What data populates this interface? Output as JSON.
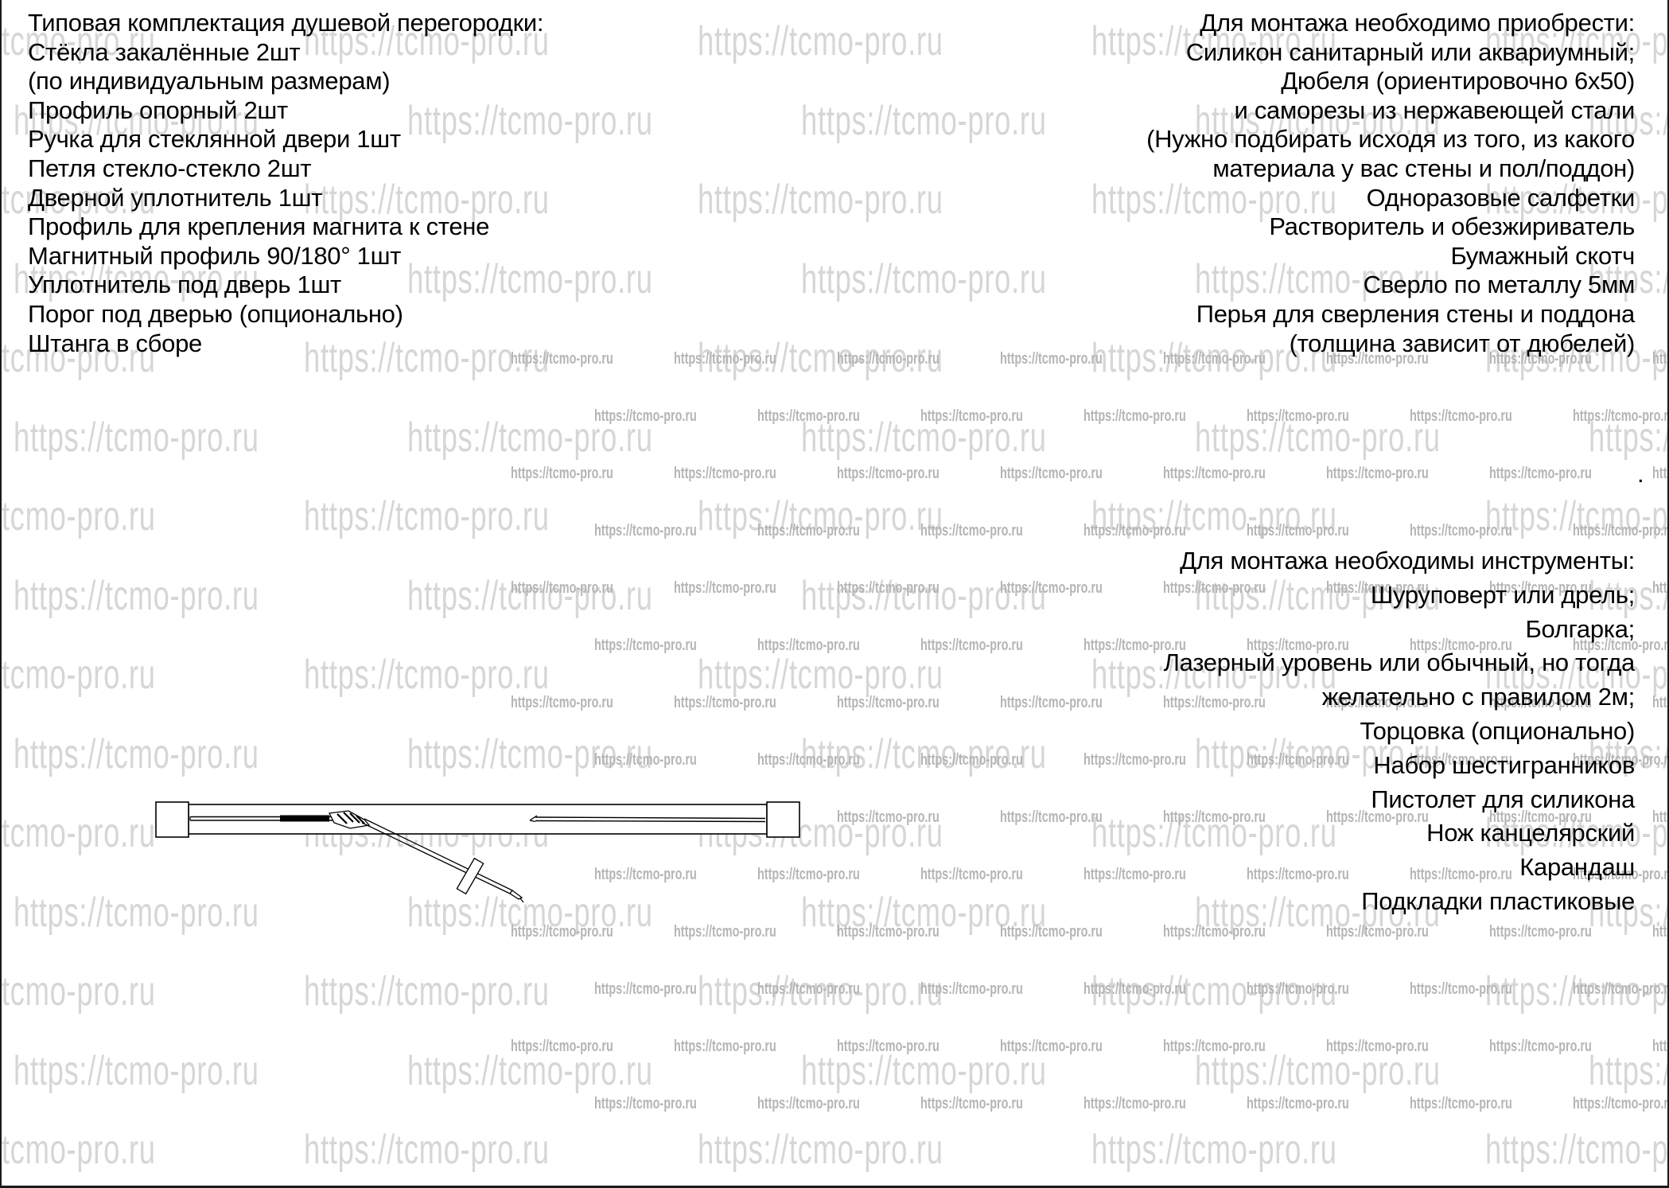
{
  "page": {
    "trailing_period": "."
  },
  "watermark": {
    "large_text": "https://tcmo-pro.ru",
    "small_text": "https://tcmo-pro.ru",
    "large_color": "#d6d6d6",
    "small_color": "#b5b5b5"
  },
  "kit_section": {
    "title": "Типовая комплектация душевой перегородки:",
    "items": [
      "Стёкла закалённые 2шт",
      "(по индивидуальным размерам)",
      "Профиль опорный 2шт",
      "Ручка для стеклянной двери 1шт",
      "Петля стекло-стекло 2шт",
      "Дверной уплотнитель 1шт",
      "Профиль для крепления магнита к стене",
      "Магнитный профиль 90/180° 1шт",
      "Уплотнитель под дверь 1шт",
      "Порог под дверью (опционально)",
      "Штанга в сборе"
    ]
  },
  "purchase_section": {
    "title": "Для монтажа необходимо приобрести:",
    "items": [
      "Силикон санитарный или аквариумный;",
      "Дюбеля (ориентировочно 6х50)",
      "и саморезы из нержавеющей стали",
      "(Нужно подбирать исходя из того, из какого",
      "материала у вас стены и пол/поддон)",
      "Одноразовые салфетки",
      "Растворитель и обезжириватель",
      "Бумажный скотч",
      "Сверло по металлу 5мм",
      "Перья для сверления стены и поддона",
      "(толщина зависит от дюбелей)"
    ]
  },
  "tools_section": {
    "title": "Для монтажа необходимы инструменты:",
    "items": [
      "Шуруповерт или дрель;",
      "Болгарка;",
      "Лазерный уровень или обычный, но тогда",
      "желательно с правилом 2м;",
      "Торцовка (опционально)",
      "Набор шестигранников",
      "Пистолет для силикона",
      "Нож канцелярский",
      "Карандаш",
      "Подкладки пластиковые"
    ]
  },
  "drawing": {
    "name": "rod-assembly-exploded-view"
  }
}
